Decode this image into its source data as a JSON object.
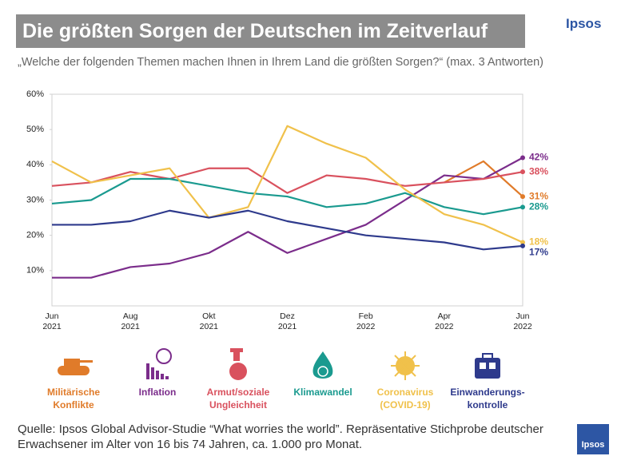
{
  "chart_data": {
    "type": "line",
    "title": "Die größten Sorgen der Deutschen im Zeitverlauf",
    "brand": "Ipsos",
    "subtitle": "„Welche der folgenden Themen machen Ihnen in Ihrem Land die größten Sorgen?“ (max. 3 Antworten)",
    "categories": [
      "Jun 2021",
      null,
      "Aug 2021",
      null,
      "Okt 2021",
      null,
      "Dez 2021",
      null,
      "Feb 2022",
      null,
      "Apr 2022",
      null,
      "Jun 2022"
    ],
    "ylim": [
      0,
      60
    ],
    "yticks": [
      {
        "value": 10,
        "label": "10%"
      },
      {
        "value": 20,
        "label": "20%"
      },
      {
        "value": 30,
        "label": "30%"
      },
      {
        "value": 40,
        "label": "40%"
      },
      {
        "value": 50,
        "label": "50%"
      },
      {
        "value": 60,
        "label": "60%"
      }
    ],
    "series": [
      {
        "name": "Militärische Konflikte",
        "color": "#e07b2a",
        "values": [
          null,
          null,
          null,
          null,
          null,
          null,
          null,
          null,
          null,
          null,
          35,
          41,
          31
        ],
        "value_labels": [
          null,
          null,
          null,
          null,
          null,
          null,
          null,
          null,
          null,
          null,
          null,
          null,
          "31%"
        ]
      },
      {
        "name": "Inflation",
        "color": "#7b2d8b",
        "values": [
          8,
          8,
          11,
          12,
          15,
          21,
          15,
          19,
          23,
          30,
          37,
          36,
          42
        ],
        "value_labels": [
          null,
          null,
          null,
          null,
          null,
          null,
          null,
          null,
          null,
          null,
          null,
          null,
          "42%"
        ]
      },
      {
        "name": "Armut/soziale Ungleichheit",
        "color": "#d9515e",
        "values": [
          34,
          35,
          38,
          36,
          39,
          39,
          32,
          37,
          36,
          34,
          35,
          36,
          38
        ],
        "value_labels": [
          null,
          null,
          null,
          null,
          null,
          null,
          null,
          null,
          null,
          null,
          null,
          null,
          "38%"
        ]
      },
      {
        "name": "Klimawandel",
        "color": "#1a9a8f",
        "values": [
          29,
          30,
          36,
          36,
          34,
          32,
          31,
          28,
          29,
          32,
          28,
          26,
          28
        ],
        "value_labels": [
          null,
          null,
          null,
          null,
          null,
          null,
          null,
          null,
          null,
          null,
          null,
          null,
          "28%"
        ]
      },
      {
        "name": "Coronavirus (COVID-19)",
        "color": "#f0c14b",
        "values": [
          41,
          35,
          37,
          39,
          25,
          28,
          51,
          46,
          42,
          33,
          26,
          23,
          18
        ],
        "value_labels": [
          null,
          null,
          null,
          null,
          null,
          null,
          null,
          null,
          null,
          null,
          null,
          null,
          "18%"
        ]
      },
      {
        "name": "Einwanderungs-kontrolle",
        "color": "#2e3a8c",
        "values": [
          23,
          23,
          24,
          27,
          25,
          27,
          24,
          22,
          20,
          19,
          18,
          16,
          17
        ],
        "value_labels": [
          null,
          null,
          null,
          null,
          null,
          null,
          null,
          null,
          null,
          null,
          null,
          null,
          "17%"
        ]
      }
    ],
    "note": "Quelle: Ipsos Global Advisor-Studie “What worries the world”. Repräsentative Stichprobe deutscher Erwachsener im Alter von 16 bis 74 Jahren, ca. 1.000 pro Monat."
  }
}
